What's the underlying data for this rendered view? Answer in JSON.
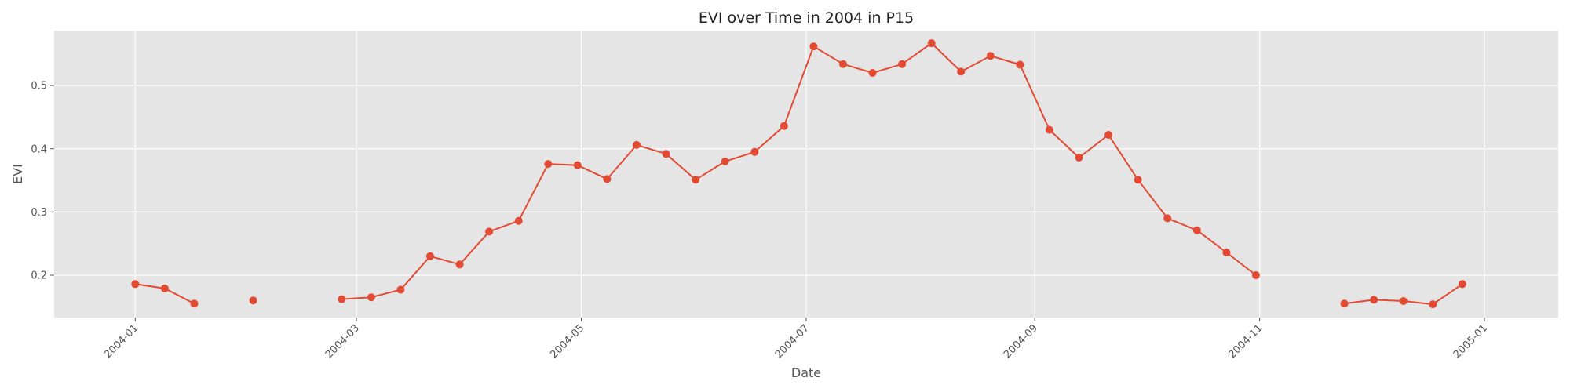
{
  "chart_data": {
    "type": "line",
    "title": "EVI over Time in 2004 in P15",
    "xlabel": "Date",
    "ylabel": "EVI",
    "x_type": "date",
    "xlim": [
      "2003-12-10",
      "2005-01-21"
    ],
    "ylim": [
      0.133,
      0.587
    ],
    "x_ticks": [
      "2004-01-01",
      "2004-03-01",
      "2004-05-01",
      "2004-07-01",
      "2004-09-01",
      "2004-11-01",
      "2005-01-01"
    ],
    "x_tick_labels": [
      "2004-01",
      "2004-03",
      "2004-05",
      "2004-07",
      "2004-09",
      "2004-11",
      "2005-01"
    ],
    "y_ticks": [
      0.2,
      0.3,
      0.4,
      0.5
    ],
    "y_tick_labels": [
      "0.2",
      "0.3",
      "0.4",
      "0.5"
    ],
    "grid": true,
    "colors": {
      "background": "#e5e5e5",
      "grid": "#ffffff",
      "line": "#e24a33"
    },
    "series": [
      {
        "x": [
          "2004-01-01",
          "2004-01-09",
          "2004-01-17",
          null,
          "2004-02-02",
          null,
          "2004-02-26",
          "2004-03-05",
          "2004-03-13",
          "2004-03-21",
          "2004-03-29",
          "2004-04-06",
          "2004-04-14",
          "2004-04-22",
          "2004-04-30",
          "2004-05-08",
          "2004-05-16",
          "2004-05-24",
          "2004-06-01",
          "2004-06-09",
          "2004-06-17",
          "2004-06-25",
          "2004-07-03",
          "2004-07-11",
          "2004-07-19",
          "2004-07-27",
          "2004-08-04",
          "2004-08-12",
          "2004-08-20",
          "2004-08-28",
          "2004-09-05",
          "2004-09-13",
          "2004-09-21",
          "2004-09-29",
          "2004-10-07",
          "2004-10-15",
          "2004-10-23",
          "2004-10-31",
          null,
          "2004-11-24",
          "2004-12-02",
          "2004-12-10",
          "2004-12-18",
          "2004-12-26"
        ],
        "values": [
          0.186,
          0.179,
          0.155,
          null,
          0.16,
          null,
          0.162,
          0.165,
          0.177,
          0.23,
          0.217,
          0.269,
          0.286,
          0.376,
          0.374,
          0.352,
          0.406,
          0.392,
          0.351,
          0.38,
          0.395,
          0.436,
          0.562,
          0.534,
          0.52,
          0.534,
          0.567,
          0.522,
          0.547,
          0.533,
          0.43,
          0.386,
          0.422,
          0.351,
          0.29,
          0.271,
          0.236,
          0.2,
          null,
          0.155,
          0.161,
          0.159,
          0.154,
          0.186
        ]
      }
    ]
  }
}
